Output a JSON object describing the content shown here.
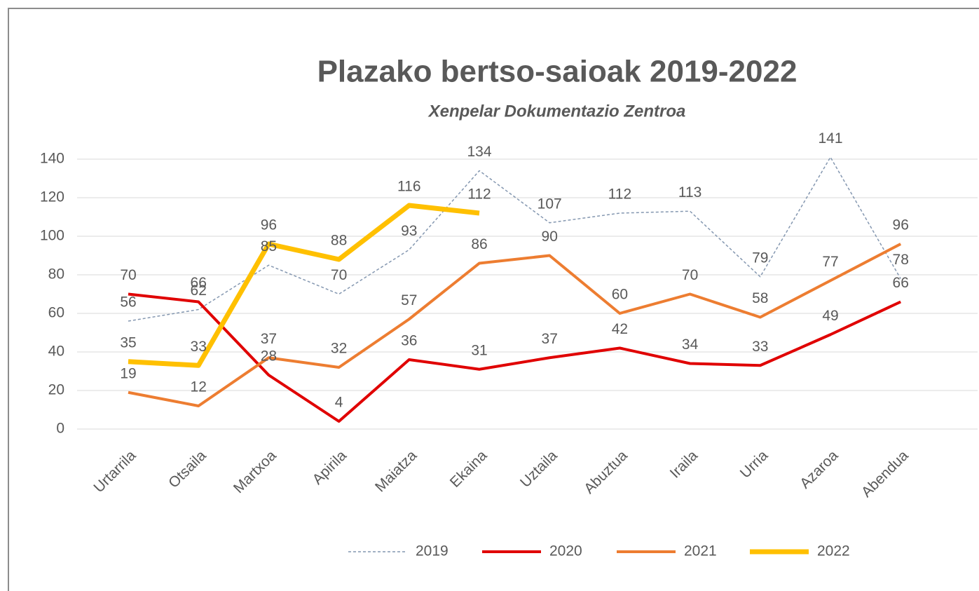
{
  "chart_data": {
    "type": "line",
    "title": "Plazako bertso-saioak 2019-2022",
    "subtitle": "Xenpelar Dokumentazio Zentroa",
    "categories": [
      "Urtarrila",
      "Otsaila",
      "Martxoa",
      "Apirila",
      "Maiatza",
      "Ekaina",
      "Uztaila",
      "Abuztua",
      "Iraila",
      "Urria",
      "Azaroa",
      "Abendua"
    ],
    "series": [
      {
        "name": "2019",
        "color": "#8497b0",
        "dashed": true,
        "values": [
          56,
          62,
          85,
          70,
          93,
          134,
          107,
          112,
          113,
          79,
          141,
          78
        ]
      },
      {
        "name": "2020",
        "color": "#e00000",
        "values": [
          70,
          66,
          28,
          4,
          36,
          31,
          37,
          42,
          34,
          33,
          49,
          66
        ]
      },
      {
        "name": "2021",
        "color": "#ed7d31",
        "values": [
          19,
          12,
          37,
          32,
          57,
          86,
          90,
          60,
          70,
          58,
          77,
          96
        ]
      },
      {
        "name": "2022",
        "color": "#ffc000",
        "values": [
          35,
          33,
          96,
          88,
          116,
          112,
          null,
          null,
          null,
          null,
          null,
          null
        ]
      }
    ],
    "ylim": [
      0,
      140
    ],
    "yticks": [
      0,
      20,
      40,
      60,
      80,
      100,
      120,
      140
    ],
    "grid": true,
    "legend": "bottom"
  }
}
